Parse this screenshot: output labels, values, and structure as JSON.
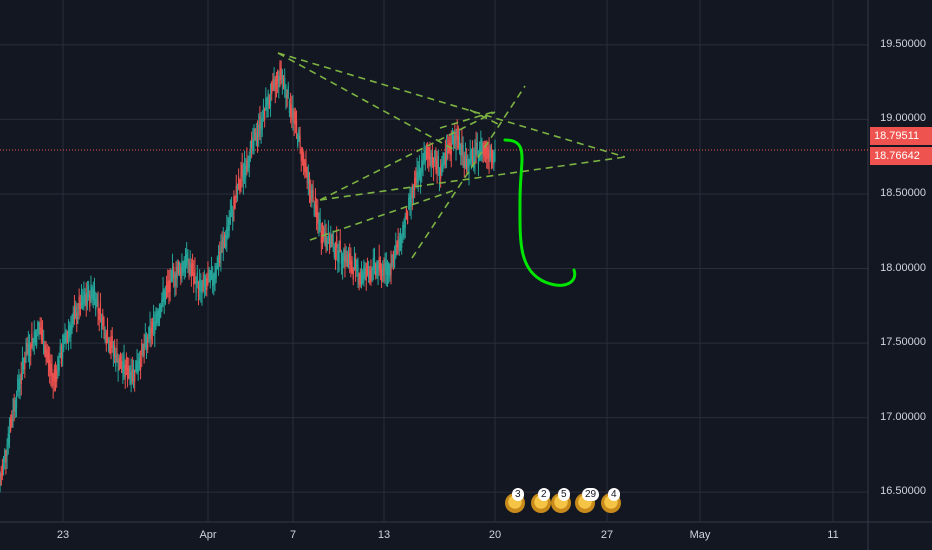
{
  "chart_data": {
    "type": "candlestick",
    "y_axis": {
      "ticks": [
        "19.50000",
        "19.00000",
        "18.50000",
        "18.00000",
        "17.50000",
        "17.00000",
        "16.50000"
      ],
      "ylim": [
        16.3,
        19.68
      ]
    },
    "x_axis": {
      "ticks": [
        "23",
        "Apr",
        "7",
        "13",
        "20",
        "27",
        "May",
        "11"
      ]
    },
    "price_labels": [
      {
        "value": "18.79511",
        "color": "#ef5350"
      },
      {
        "value": "18.76642",
        "color": "#ef5350"
      }
    ],
    "series_path": [
      [
        16.55,
        "up"
      ],
      [
        17.05,
        "up"
      ],
      [
        17.45,
        "up"
      ],
      [
        17.6,
        "down"
      ],
      [
        17.25,
        "down"
      ],
      [
        17.55,
        "up"
      ],
      [
        17.75,
        "up"
      ],
      [
        17.85,
        "down"
      ],
      [
        17.55,
        "down"
      ],
      [
        17.35,
        "down"
      ],
      [
        17.3,
        "up"
      ],
      [
        17.5,
        "up"
      ],
      [
        17.75,
        "up"
      ],
      [
        17.95,
        "up"
      ],
      [
        18.05,
        "down"
      ],
      [
        17.85,
        "down"
      ],
      [
        17.95,
        "up"
      ],
      [
        18.25,
        "up"
      ],
      [
        18.6,
        "up"
      ],
      [
        18.85,
        "up"
      ],
      [
        19.1,
        "up"
      ],
      [
        19.32,
        "up"
      ],
      [
        19.0,
        "down"
      ],
      [
        18.6,
        "down"
      ],
      [
        18.25,
        "down"
      ],
      [
        18.15,
        "down"
      ],
      [
        18.05,
        "down"
      ],
      [
        17.95,
        "down"
      ],
      [
        18.0,
        "up"
      ],
      [
        17.98,
        "down"
      ],
      [
        18.2,
        "up"
      ],
      [
        18.55,
        "up"
      ],
      [
        18.78,
        "up"
      ],
      [
        18.65,
        "down"
      ],
      [
        18.9,
        "up"
      ],
      [
        18.7,
        "down"
      ],
      [
        18.8,
        "up"
      ],
      [
        18.78,
        "down"
      ]
    ],
    "annotations": {
      "trend_lines_style": "dashed",
      "projection_color": "#00e600"
    },
    "event_badges": [
      "3",
      "2",
      "5",
      "29",
      "4"
    ]
  }
}
